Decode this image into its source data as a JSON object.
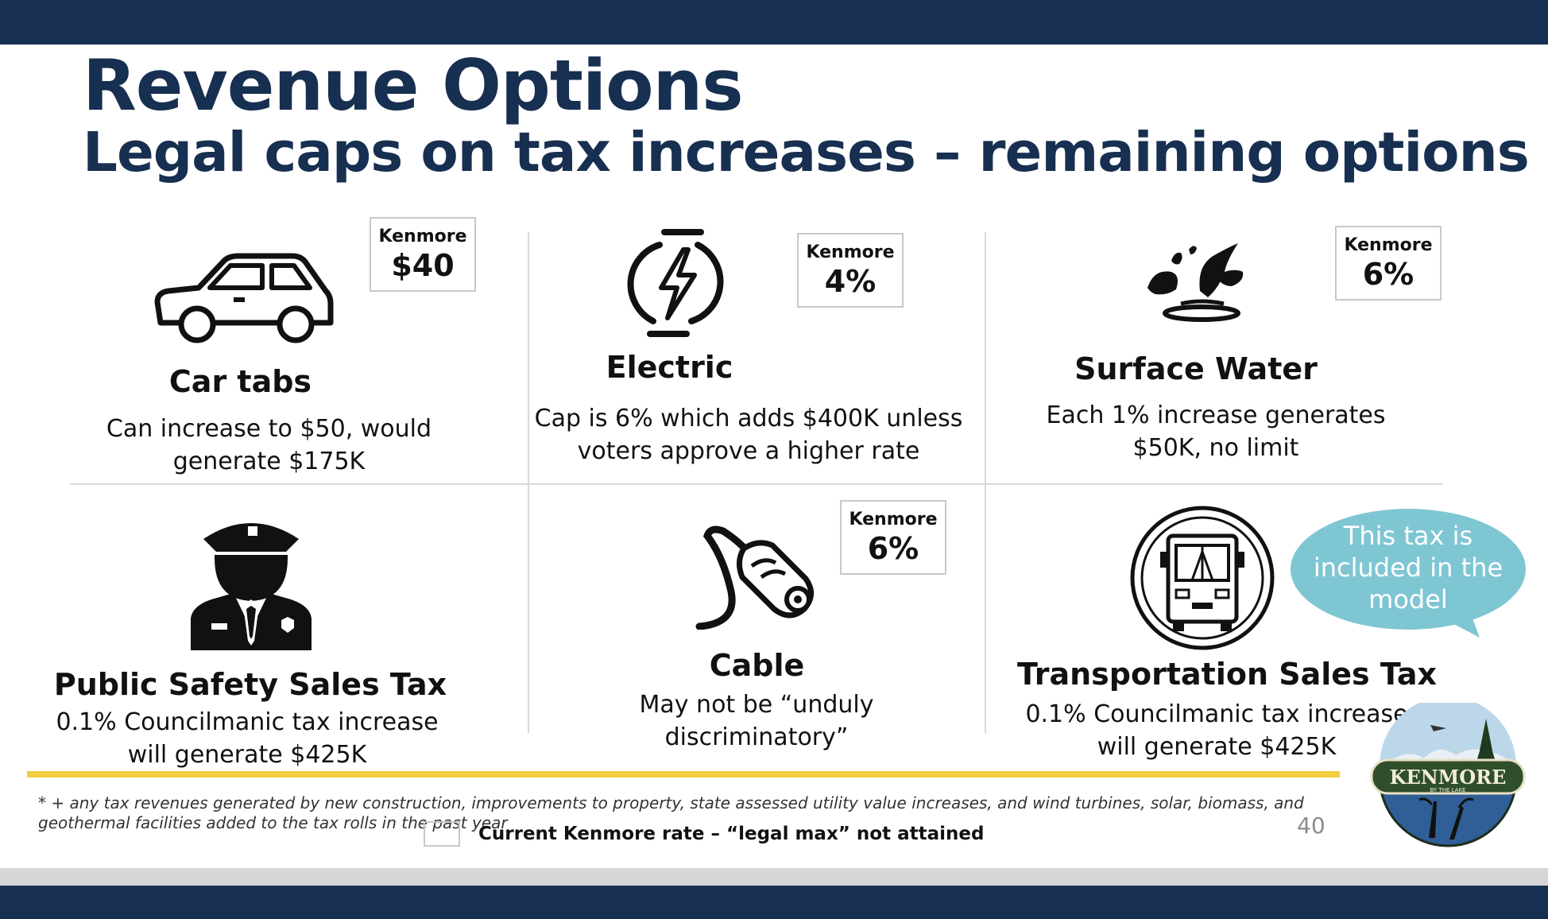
{
  "header": {
    "title": "Revenue Options",
    "subtitle": "Legal caps on tax increases – remaining options"
  },
  "cells": [
    {
      "title": "Car tabs",
      "text": "Can increase to $50, would generate $175K",
      "badge_label": "Kenmore",
      "badge_value": "$40",
      "icon": "car-icon"
    },
    {
      "title": "Electric",
      "text": "Cap is 6% which adds $400K unless voters approve a higher rate",
      "badge_label": "Kenmore",
      "badge_value": "4%",
      "icon": "electricity-icon"
    },
    {
      "title": "Surface Water",
      "text": "Each 1% increase generates $50K, no limit",
      "badge_label": "Kenmore",
      "badge_value": "6%",
      "icon": "water-splash-icon"
    },
    {
      "title": "Public Safety Sales Tax",
      "text": "0.1% Councilmanic tax increase will generate $425K",
      "icon": "police-officer-icon"
    },
    {
      "title": "Cable",
      "text": "May not be “unduly discriminatory”",
      "badge_label": "Kenmore",
      "badge_value": "6%",
      "icon": "cable-plug-icon"
    },
    {
      "title": "Transportation Sales Tax",
      "text": "0.1% Councilmanic tax increase will generate $425K",
      "icon": "bus-icon"
    }
  ],
  "callout": {
    "text": "This tax is included in the model",
    "color": "#7fc6d3"
  },
  "footnote": "* + any tax revenues generated by new construction, improvements to property, state assessed utility value increases, and wind turbines, solar, biomass, and geothermal facilities added to the tax rolls in the past year",
  "legend": {
    "text": "Current Kenmore rate – “legal max” not attained"
  },
  "page_number": "40",
  "logo": {
    "name": "KENMORE",
    "tagline": "BY THE LAKE"
  },
  "colors": {
    "navy": "#172f50",
    "accent_yellow": "#f2cd3c",
    "bubble": "#7fc6d3"
  }
}
